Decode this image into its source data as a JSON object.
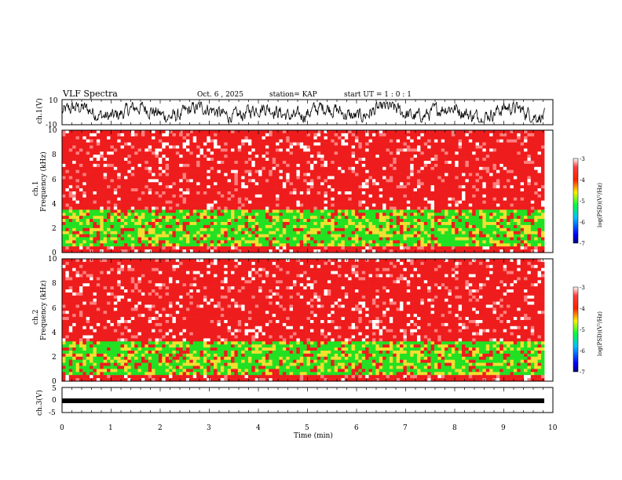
{
  "header": {
    "title": "VLF Spectra",
    "date": "Oct. 6 , 2025",
    "station": "station= KAP",
    "start_ut": "start UT =  1 : 0  : 1"
  },
  "chart_data": [
    {
      "type": "line",
      "panel": "ch1-waveform",
      "ylabel": "ch.1(V)",
      "ylim": [
        -10,
        10
      ],
      "yticks": [
        "10",
        "-10"
      ],
      "x_range_min": [
        0,
        9.83
      ],
      "description_values": "noisy waveform roughly between -8 and 8 V"
    },
    {
      "type": "heatmap",
      "panel": "ch1-spectrogram",
      "ylabel_line1": "ch.1",
      "ylabel_line2": "Frequency (kHz)",
      "ylim": [
        0,
        10
      ],
      "yticks": [
        "0",
        "2",
        "4",
        "6",
        "8",
        "10"
      ],
      "bands_khz": [
        {
          "from": 0.0,
          "to": 0.6,
          "level": -3.2
        },
        {
          "from": 0.6,
          "to": 3.6,
          "level": -5.0
        },
        {
          "from": 3.6,
          "to": 10.0,
          "level": -3.4
        }
      ],
      "colorbar": {
        "label": "log(PSD)(V²/Hz)",
        "range": [
          -7,
          -3
        ],
        "ticks": [
          "-3",
          "-4",
          "-5",
          "-6",
          "-7"
        ]
      }
    },
    {
      "type": "heatmap",
      "panel": "ch2-spectrogram",
      "ylabel_line1": "ch.2",
      "ylabel_line2": "Frequency (kHz)",
      "ylim": [
        0,
        10
      ],
      "yticks": [
        "0",
        "2",
        "4",
        "6",
        "8",
        "10"
      ],
      "bands_khz": [
        {
          "from": 0.0,
          "to": 0.6,
          "level": -3.2
        },
        {
          "from": 0.6,
          "to": 3.2,
          "level": -5.1
        },
        {
          "from": 3.2,
          "to": 10.0,
          "level": -3.4
        }
      ],
      "colorbar": {
        "label": "log(PSD)(V²/Hz)",
        "range": [
          -7,
          -3
        ],
        "ticks": [
          "-3",
          "-4",
          "-5",
          "-6",
          "-7"
        ]
      }
    },
    {
      "type": "line",
      "panel": "ch3-waveform",
      "ylabel": "ch.3(V)",
      "ylim": [
        -5,
        5
      ],
      "yticks": [
        "5",
        "0",
        "-5"
      ],
      "band_v": [
        -1.2,
        -0.2
      ]
    }
  ],
  "x_axis": {
    "label": "Time (min)",
    "range": [
      0,
      10
    ],
    "ticks": [
      "0",
      "1",
      "2",
      "3",
      "4",
      "5",
      "6",
      "7",
      "8",
      "9",
      "10"
    ]
  },
  "colors": {
    "line": "#000000",
    "red": "#ee1c1c",
    "yellow": "#f0e030",
    "green": "#22e022"
  }
}
